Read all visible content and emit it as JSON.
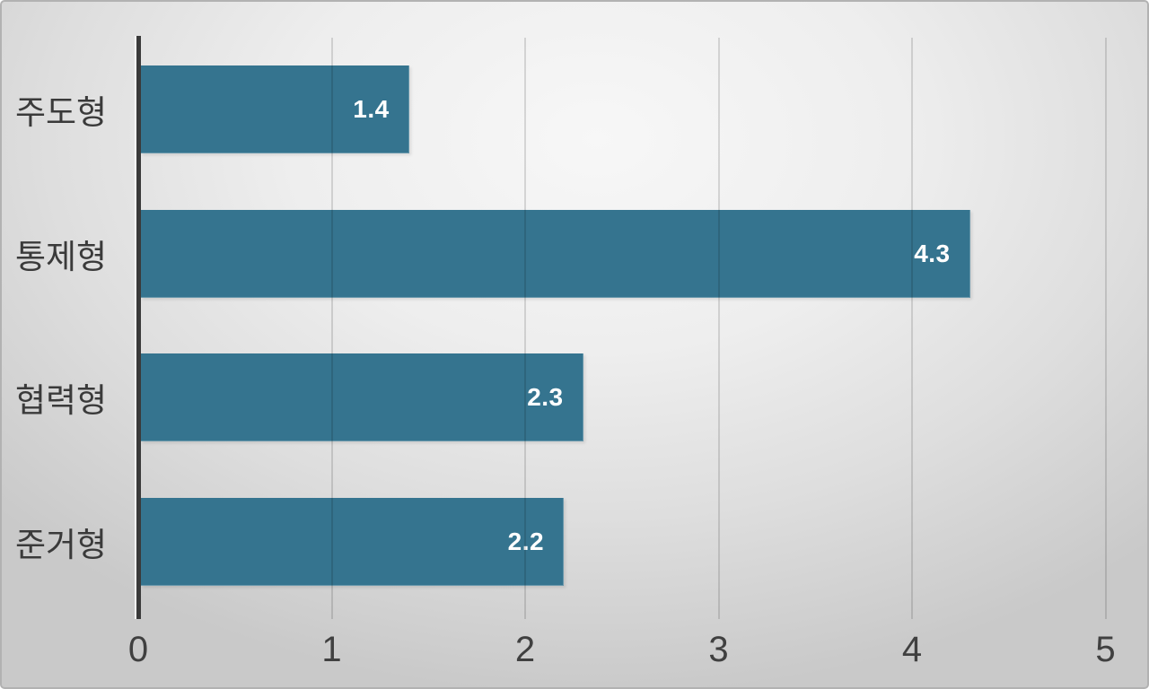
{
  "chart_data": {
    "type": "bar",
    "orientation": "horizontal",
    "title": "",
    "xlabel": "",
    "ylabel": "",
    "categories": [
      "주도형",
      "통제형",
      "협력형",
      "준거형"
    ],
    "values": [
      1.4,
      4.3,
      2.3,
      2.2
    ],
    "value_labels": [
      "1.4",
      "4.3",
      "2.3",
      "2.2"
    ],
    "x_ticks": [
      "0",
      "1",
      "2",
      "3",
      "4",
      "5"
    ],
    "xlim": [
      0,
      5
    ],
    "grid": "vertical-gridlines-on",
    "legend_position": "none",
    "colors": {
      "bar_fill": "#35748F",
      "value_label_text": "#FFFFFF",
      "axis_line": "#3A3A3A",
      "gridline": "rgba(0,0,0,0.13)",
      "category_label_text": "#3A3A3A",
      "tick_label_text": "#404040",
      "background_center": "#F7F7F7",
      "background_edge": "#C9C9C9",
      "frame_border": "#B2B2B2"
    }
  }
}
